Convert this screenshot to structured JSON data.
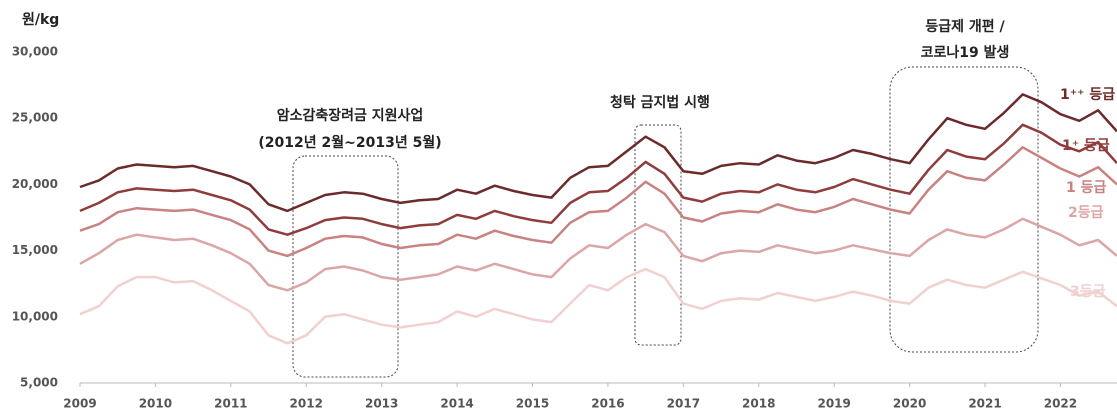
{
  "chart_data": {
    "type": "line",
    "y_label": "원/kg",
    "annotations": [
      "암소감축장려금 지원사업",
      "(2012년 2월~2013년 5월)",
      "청탁 금지법 시행",
      "등급제 개편 /",
      "코로나19 발생"
    ],
    "x": [
      2009,
      2009.25,
      2009.5,
      2009.75,
      2010,
      2010.25,
      2010.5,
      2010.75,
      2011,
      2011.25,
      2011.5,
      2011.75,
      2012,
      2012.25,
      2012.5,
      2012.75,
      2013,
      2013.25,
      2013.5,
      2013.75,
      2014,
      2014.25,
      2014.5,
      2014.75,
      2015,
      2015.25,
      2015.5,
      2015.75,
      2016,
      2016.25,
      2016.5,
      2016.75,
      2017,
      2017.25,
      2017.5,
      2017.75,
      2018,
      2018.25,
      2018.5,
      2018.75,
      2019,
      2019.25,
      2019.5,
      2019.75,
      2020,
      2020.25,
      2020.5,
      2020.75,
      2021,
      2021.25,
      2021.5,
      2021.75,
      2022,
      2022.25,
      2022.5,
      2022.75
    ],
    "xlim": [
      2009,
      2022.75
    ],
    "xticks": [
      2009,
      2010,
      2011,
      2012,
      2013,
      2014,
      2015,
      2016,
      2017,
      2018,
      2019,
      2020,
      2021,
      2022
    ],
    "ylim": [
      5000,
      30000
    ],
    "yticks": [
      {
        "value": 5000,
        "label": "5,000"
      },
      {
        "value": 10000,
        "label": "10,000"
      },
      {
        "value": 15000,
        "label": "15,000"
      },
      {
        "value": 20000,
        "label": "20,000"
      },
      {
        "value": 25000,
        "label": "25,000"
      },
      {
        "value": 30000,
        "label": "30,000"
      }
    ],
    "series": [
      {
        "name": "1⁺⁺ 등급",
        "color": "#6b2b2b",
        "values": [
          19800,
          20300,
          21200,
          21500,
          21400,
          21300,
          21400,
          21000,
          20600,
          20000,
          18500,
          18000,
          18600,
          19200,
          19400,
          19300,
          18900,
          18600,
          18800,
          18900,
          19600,
          19300,
          19900,
          19500,
          19200,
          19000,
          20500,
          21300,
          21400,
          22500,
          23600,
          22800,
          21000,
          20800,
          21400,
          21600,
          21500,
          22200,
          21800,
          21600,
          22000,
          22600,
          22300,
          21900,
          21600,
          23400,
          25000,
          24500,
          24200,
          25400,
          26800,
          26200,
          25300,
          24800,
          25600,
          24000
        ]
      },
      {
        "name": "1⁺ 등급",
        "color": "#8e3c3c",
        "values": [
          18000,
          18600,
          19400,
          19700,
          19600,
          19500,
          19600,
          19200,
          18800,
          18100,
          16600,
          16200,
          16700,
          17300,
          17500,
          17400,
          17000,
          16700,
          16900,
          17000,
          17700,
          17400,
          18000,
          17600,
          17300,
          17100,
          18600,
          19400,
          19500,
          20500,
          21700,
          20800,
          19000,
          18700,
          19300,
          19500,
          19400,
          20000,
          19600,
          19400,
          19800,
          20400,
          20000,
          19600,
          19300,
          21100,
          22600,
          22100,
          21900,
          23100,
          24500,
          23900,
          23000,
          22500,
          23200,
          21600
        ]
      },
      {
        "name": "1 등급",
        "color": "#c98282",
        "values": [
          16500,
          17000,
          17900,
          18200,
          18100,
          18000,
          18100,
          17700,
          17300,
          16600,
          15000,
          14600,
          15200,
          15900,
          16100,
          16000,
          15500,
          15200,
          15400,
          15500,
          16200,
          15900,
          16500,
          16100,
          15800,
          15600,
          17100,
          17900,
          18000,
          19000,
          20200,
          19300,
          17500,
          17200,
          17800,
          18000,
          17900,
          18500,
          18100,
          17900,
          18300,
          18900,
          18500,
          18100,
          17800,
          19600,
          21000,
          20500,
          20300,
          21500,
          22800,
          22000,
          21200,
          20600,
          21300,
          20000
        ]
      },
      {
        "name": "2등급",
        "color": "#dba6a6",
        "values": [
          14000,
          14800,
          15800,
          16200,
          16000,
          15800,
          15900,
          15400,
          14800,
          14000,
          12400,
          12000,
          12600,
          13600,
          13800,
          13500,
          13000,
          12800,
          13000,
          13200,
          13800,
          13500,
          14000,
          13600,
          13200,
          13000,
          14400,
          15400,
          15200,
          16200,
          17000,
          16400,
          14600,
          14200,
          14800,
          15000,
          14900,
          15400,
          15100,
          14800,
          15000,
          15400,
          15100,
          14800,
          14600,
          15800,
          16600,
          16200,
          16000,
          16600,
          17400,
          16800,
          16200,
          15400,
          15800,
          14600
        ]
      },
      {
        "name": "3등급",
        "color": "#f1d0d0",
        "values": [
          10200,
          10800,
          12300,
          13000,
          13000,
          12600,
          12700,
          12000,
          11200,
          10400,
          8600,
          8000,
          8600,
          10000,
          10200,
          9800,
          9400,
          9200,
          9400,
          9600,
          10400,
          10000,
          10600,
          10200,
          9800,
          9600,
          11000,
          12400,
          12000,
          13000,
          13600,
          13000,
          11000,
          10600,
          11200,
          11400,
          11300,
          11800,
          11500,
          11200,
          11500,
          11900,
          11600,
          11200,
          11000,
          12200,
          12800,
          12400,
          12200,
          12800,
          13400,
          12900,
          12400,
          11600,
          11900,
          10800
        ]
      }
    ]
  }
}
